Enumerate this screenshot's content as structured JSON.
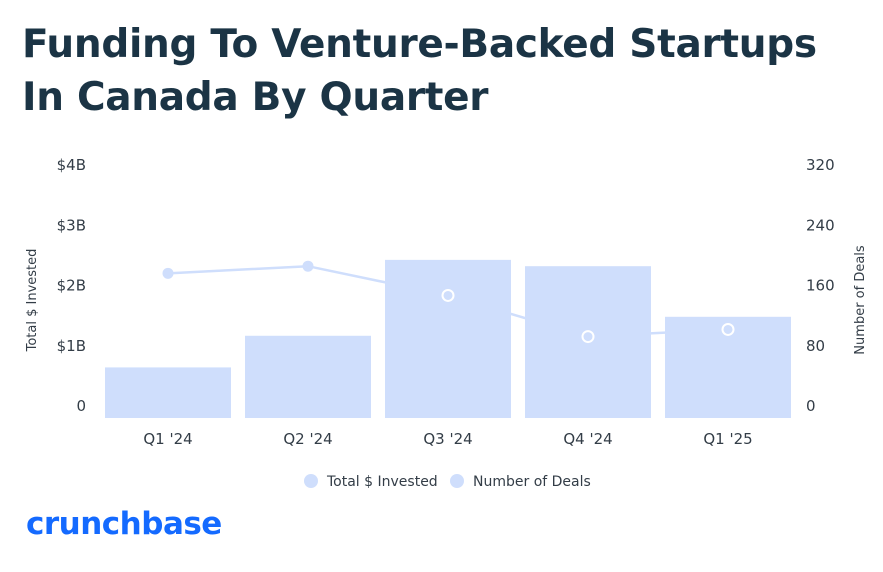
{
  "title": "Funding To Venture-Backed Startups In Canada By Quarter",
  "logo_text": "crunchbase",
  "colors": {
    "bar": "#cfdefc",
    "line": "#cfdefc",
    "title": "#1b3445",
    "logo": "#146aff"
  },
  "chart_data": {
    "type": "bar",
    "categories": [
      "Q1 '24",
      "Q2 '24",
      "Q3 '24",
      "Q4 '24",
      "Q1 '25"
    ],
    "y_left": {
      "label": "Total $ Invested",
      "ticks": [
        "0",
        "$1B",
        "$2B",
        "$3B",
        "$4B"
      ],
      "ylim": [
        0,
        4
      ]
    },
    "y_right": {
      "label": "Number of Deals",
      "ticks": [
        "0",
        "80",
        "160",
        "240",
        "320"
      ],
      "ylim": [
        0,
        320
      ]
    },
    "series": [
      {
        "name": "Total $ Invested",
        "type": "bar",
        "axis": "left",
        "unit": "$B",
        "values": [
          0.8,
          1.3,
          2.5,
          2.4,
          1.6
        ]
      },
      {
        "name": "Number of Deals",
        "type": "line",
        "axis": "right",
        "values": [
          183,
          192,
          155,
          103,
          112
        ]
      }
    ],
    "legend": [
      "Total $ Invested",
      "Number of Deals"
    ],
    "legend_position": "bottom",
    "grid": false
  }
}
